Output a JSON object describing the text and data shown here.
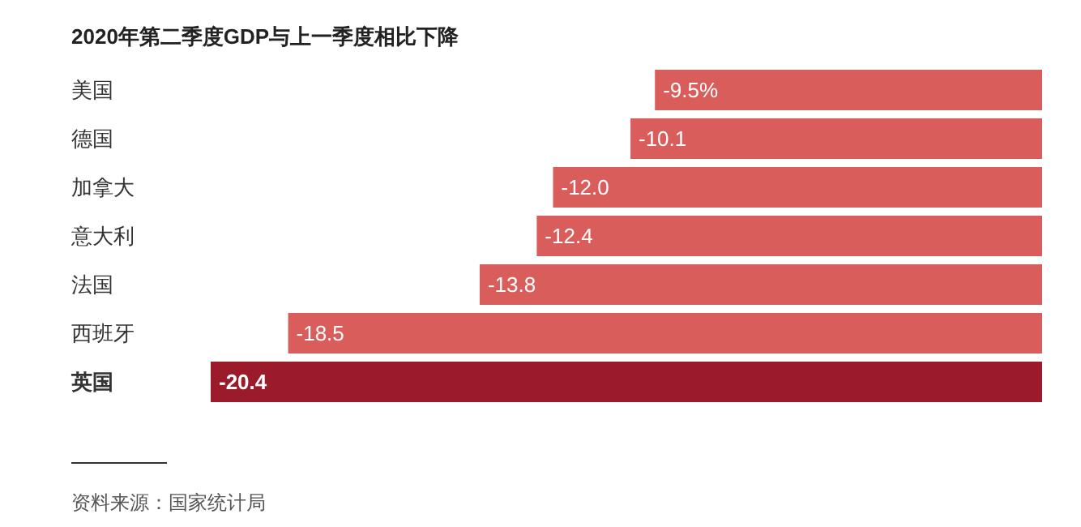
{
  "chart_data": {
    "type": "bar",
    "orientation": "horizontal",
    "title": "2020年第二季度GDP与上一季度相比下降",
    "categories": [
      "美国",
      "德国",
      "加拿大",
      "意大利",
      "法国",
      "西班牙",
      "英国"
    ],
    "values": [
      -9.5,
      -10.1,
      -12.0,
      -12.4,
      -13.8,
      -18.5,
      -20.4
    ],
    "value_labels": [
      "-9.5%",
      "-10.1",
      "-12.0",
      "-12.4",
      "-13.8",
      "-18.5",
      "-20.4"
    ],
    "colors": [
      "#d95e5b",
      "#d95e5b",
      "#d95e5b",
      "#d95e5b",
      "#d95e5b",
      "#d95e5b",
      "#9b1b2a"
    ],
    "annotations": [
      "资料来源：国家统计局"
    ]
  }
}
